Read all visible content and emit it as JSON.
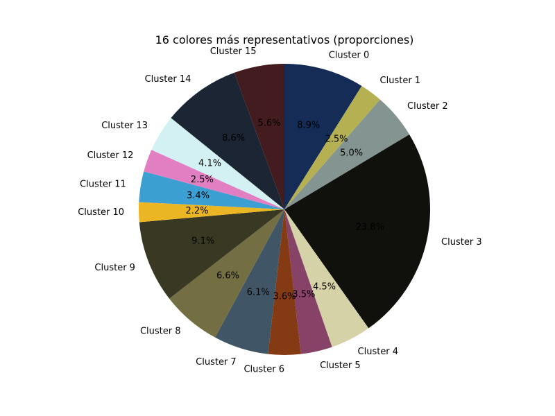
{
  "chart_data": {
    "type": "pie",
    "title": "16 colores más representativos (proporciones)",
    "start_angle_deg": 90,
    "direction": "clockwise",
    "slices": [
      {
        "label": "Cluster 0",
        "value": 8.9,
        "pct_label": "8.9%",
        "color": "#142c56"
      },
      {
        "label": "Cluster 1",
        "value": 2.5,
        "pct_label": "2.5%",
        "color": "#b5b152"
      },
      {
        "label": "Cluster 2",
        "value": 5.0,
        "pct_label": "5.0%",
        "color": "#849490"
      },
      {
        "label": "Cluster 3",
        "value": 23.8,
        "pct_label": "23.8%",
        "color": "#10110c"
      },
      {
        "label": "Cluster 4",
        "value": 4.5,
        "pct_label": "4.5%",
        "color": "#d6d2a8"
      },
      {
        "label": "Cluster 5",
        "value": 3.5,
        "pct_label": "3.5%",
        "color": "#874268"
      },
      {
        "label": "Cluster 6",
        "value": 3.6,
        "pct_label": "3.6%",
        "color": "#843a12"
      },
      {
        "label": "Cluster 7",
        "value": 6.1,
        "pct_label": "6.1%",
        "color": "#405666"
      },
      {
        "label": "Cluster 8",
        "value": 6.6,
        "pct_label": "6.6%",
        "color": "#746f42"
      },
      {
        "label": "Cluster 9",
        "value": 9.1,
        "pct_label": "9.1%",
        "color": "#393823"
      },
      {
        "label": "Cluster 10",
        "value": 2.2,
        "pct_label": "2.2%",
        "color": "#ebb624"
      },
      {
        "label": "Cluster 11",
        "value": 3.4,
        "pct_label": "3.4%",
        "color": "#3c9fd2"
      },
      {
        "label": "Cluster 12",
        "value": 2.5,
        "pct_label": "2.5%",
        "color": "#e27fc2"
      },
      {
        "label": "Cluster 13",
        "value": 4.1,
        "pct_label": "4.1%",
        "color": "#d3f1f2"
      },
      {
        "label": "Cluster 14",
        "value": 8.6,
        "pct_label": "8.6%",
        "color": "#1b2534"
      },
      {
        "label": "Cluster 15",
        "value": 5.6,
        "pct_label": "5.6%",
        "color": "#431c1f"
      }
    ]
  }
}
